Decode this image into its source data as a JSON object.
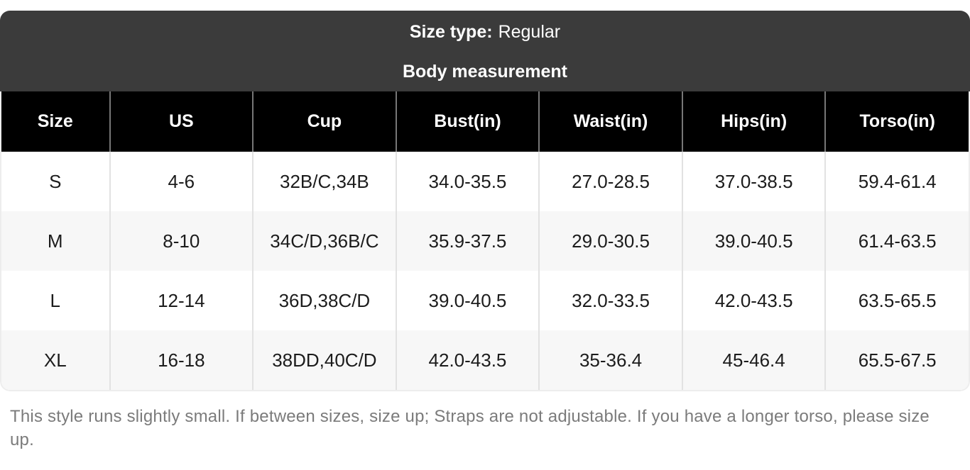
{
  "header": {
    "size_type_label": "Size type:",
    "size_type_value": "Regular",
    "table_title": "Body measurement"
  },
  "table": {
    "columns": [
      "Size",
      "US",
      "Cup",
      "Bust(in)",
      "Waist(in)",
      "Hips(in)",
      "Torso(in)"
    ],
    "rows": [
      [
        "S",
        "4-6",
        "32B/C,34B",
        "34.0-35.5",
        "27.0-28.5",
        "37.0-38.5",
        "59.4-61.4"
      ],
      [
        "M",
        "8-10",
        "34C/D,36B/C",
        "35.9-37.5",
        "29.0-30.5",
        "39.0-40.5",
        "61.4-63.5"
      ],
      [
        "L",
        "12-14",
        "36D,38C/D",
        "39.0-40.5",
        "32.0-33.5",
        "42.0-43.5",
        "63.5-65.5"
      ],
      [
        "XL",
        "16-18",
        "38DD,40C/D",
        "42.0-43.5",
        "35-36.4",
        "45-46.4",
        "65.5-67.5"
      ]
    ]
  },
  "note": "This style runs slightly small. If between sizes, size up; Straps are not adjustable. If you have a longer torso, please size up.",
  "colors": {
    "banner_bg": "#3b3b3b",
    "header_bg": "#000000",
    "header_text": "#ffffff",
    "alt_row_bg": "#f7f7f7",
    "body_text": "#1c1c1c",
    "note_text": "#7b7b7b",
    "header_separator": "#777777",
    "body_separator": "#e2e2e2"
  }
}
